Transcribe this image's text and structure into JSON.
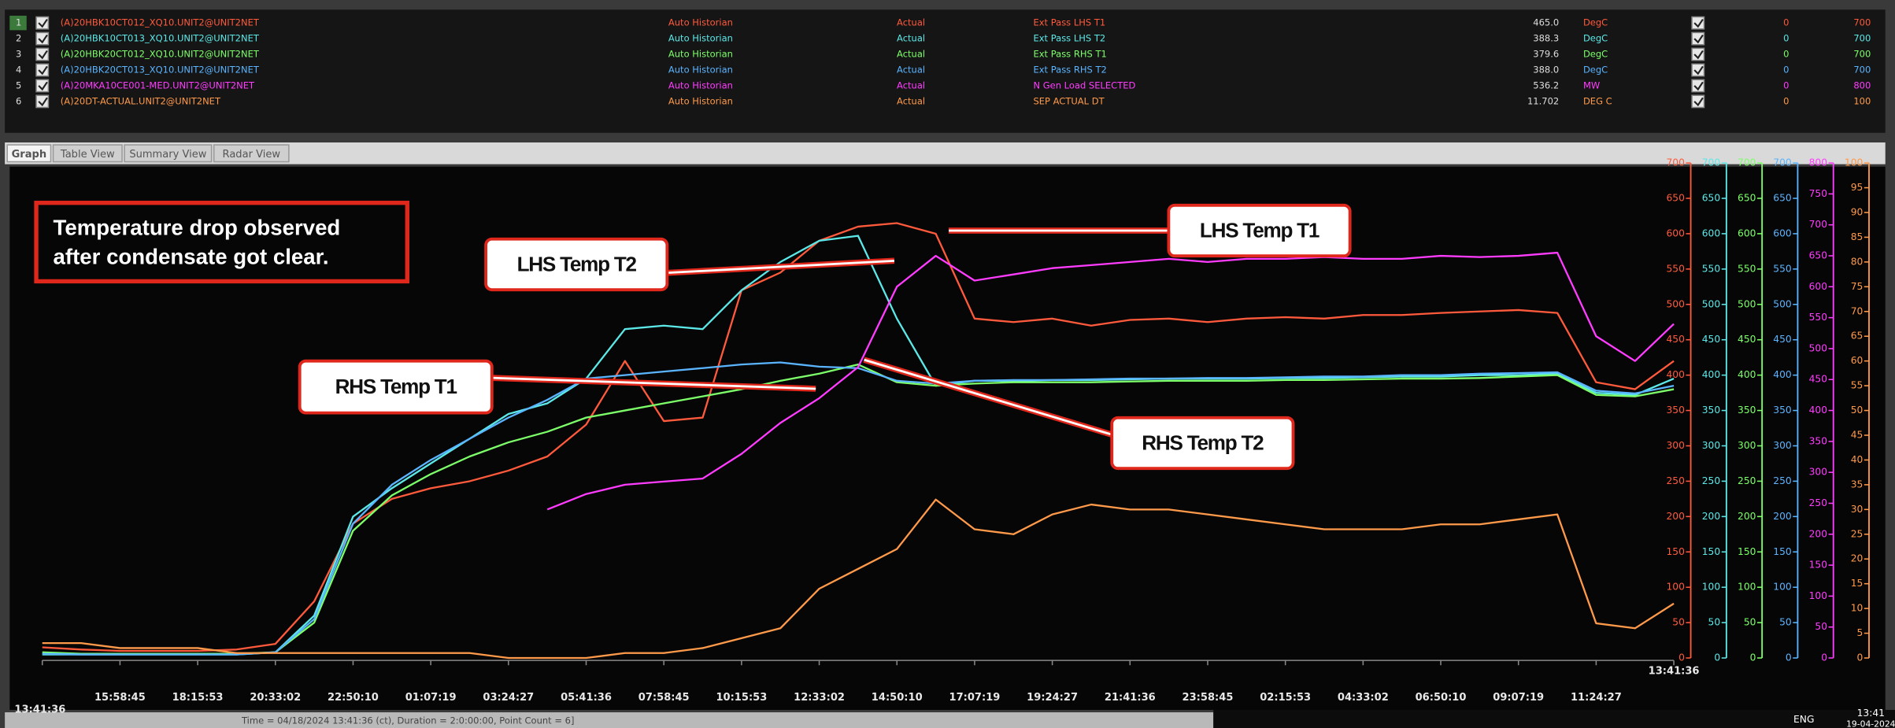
{
  "window": {
    "tabs": [
      "Graph",
      "Table View",
      "Summary View",
      "Radar View"
    ],
    "status_text": "Time = 04/18/2024 13:41:36 (ct), Duration = 2:0:00:00, Point Count = 6]",
    "taskbar": {
      "language": "ENG",
      "time": "13:41",
      "date": "19-04-2024"
    }
  },
  "chart_data": {
    "type": "line",
    "categories": [
      "13:41:36",
      null,
      "15:58:45",
      null,
      "18:15:53",
      null,
      "20:33:02",
      null,
      "22:50:10",
      null,
      "01:07:19",
      null,
      "03:24:27",
      null,
      "05:41:36",
      null,
      "07:58:45",
      null,
      "10:15:53",
      null,
      "12:33:02",
      null,
      "14:50:10",
      null,
      "17:07:19",
      null,
      "19:24:27",
      null,
      "21:41:36",
      null,
      "23:58:45",
      null,
      "02:15:53",
      null,
      "04:33:02",
      null,
      "06:50:10",
      null,
      "09:07:19",
      null,
      "11:24:27",
      null,
      "13:41:36"
    ],
    "axes": [
      {
        "color": "#ff5a3c",
        "ylim": [
          0,
          700
        ],
        "yticks": [
          0,
          50,
          100,
          150,
          200,
          250,
          300,
          350,
          400,
          450,
          500,
          550,
          600,
          650,
          700
        ]
      },
      {
        "color": "#5de8e8",
        "ylim": [
          0,
          700
        ],
        "yticks": [
          0,
          50,
          100,
          150,
          200,
          250,
          300,
          350,
          400,
          450,
          500,
          550,
          600,
          650,
          700
        ]
      },
      {
        "color": "#7dff6a",
        "ylim": [
          0,
          700
        ],
        "yticks": [
          0,
          50,
          100,
          150,
          200,
          250,
          300,
          350,
          400,
          450,
          500,
          550,
          600,
          650,
          700
        ]
      },
      {
        "color": "#5ab4ff",
        "ylim": [
          0,
          700
        ],
        "yticks": [
          0,
          50,
          100,
          150,
          200,
          250,
          300,
          350,
          400,
          450,
          500,
          550,
          600,
          650,
          700
        ]
      },
      {
        "color": "#ff3cff",
        "ylim": [
          0,
          800
        ],
        "yticks": [
          0,
          50,
          100,
          150,
          200,
          250,
          300,
          350,
          400,
          450,
          500,
          550,
          600,
          650,
          700,
          750,
          800
        ]
      },
      {
        "color": "#ff9a4a",
        "ylim": [
          0,
          100
        ],
        "yticks": [
          0,
          5,
          10,
          15,
          20,
          25,
          30,
          35,
          40,
          45,
          50,
          55,
          60,
          65,
          70,
          75,
          80,
          85,
          90,
          95,
          100
        ]
      }
    ],
    "series": [
      {
        "row": "1",
        "tag": "(A)20HBK10CT012_XQ10.UNIT2@UNIT2NET",
        "source": "Auto Historian",
        "mode": "Actual",
        "name": "Ext Pass LHS T1",
        "current": "465.0",
        "unit": "DegC",
        "min": "0",
        "max": "700",
        "color": "#ff5a3c",
        "axis": 0,
        "values": [
          15,
          12,
          10,
          10,
          10,
          12,
          20,
          80,
          190,
          225,
          240,
          250,
          265,
          285,
          330,
          420,
          335,
          340,
          520,
          545,
          590,
          610,
          615,
          600,
          480,
          475,
          480,
          470,
          478,
          480,
          475,
          480,
          482,
          480,
          485,
          485,
          488,
          490,
          492,
          488,
          390,
          380,
          420
        ]
      },
      {
        "row": "2",
        "tag": "(A)20HBK10CT013_XQ10.UNIT2@UNIT2NET",
        "source": "Auto Historian",
        "mode": "Actual",
        "name": "Ext Pass LHS T2",
        "current": "388.3",
        "unit": "DegC",
        "min": "0",
        "max": "700",
        "color": "#5de8e8",
        "axis": 1,
        "values": [
          5,
          5,
          5,
          5,
          5,
          5,
          8,
          60,
          200,
          240,
          275,
          310,
          345,
          360,
          395,
          465,
          470,
          465,
          520,
          560,
          590,
          597,
          480,
          385,
          392,
          392,
          393,
          393,
          394,
          395,
          395,
          395,
          396,
          396,
          397,
          398,
          398,
          400,
          400,
          402,
          375,
          372,
          395
        ]
      },
      {
        "row": "3",
        "tag": "(A)20HBK20CT012_XQ10.UNIT2@UNIT2NET",
        "source": "Auto Historian",
        "mode": "Actual",
        "name": "Ext Pass RHS T1",
        "current": "379.6",
        "unit": "DegC",
        "min": "0",
        "max": "700",
        "color": "#7dff6a",
        "axis": 2,
        "values": [
          8,
          6,
          6,
          6,
          6,
          6,
          8,
          50,
          180,
          230,
          260,
          285,
          305,
          320,
          340,
          350,
          360,
          370,
          380,
          392,
          402,
          415,
          390,
          385,
          388,
          390,
          390,
          390,
          391,
          392,
          392,
          392,
          393,
          393,
          394,
          395,
          395,
          396,
          398,
          400,
          372,
          370,
          380
        ]
      },
      {
        "row": "4",
        "tag": "(A)20HBK20CT013_XQ10.UNIT2@UNIT2NET",
        "source": "Auto Historian",
        "mode": "Actual",
        "name": "Ext Pass RHS T2",
        "current": "388.0",
        "unit": "DegC",
        "min": "0",
        "max": "700",
        "color": "#5ab4ff",
        "axis": 3,
        "values": [
          6,
          5,
          5,
          5,
          5,
          5,
          8,
          55,
          190,
          245,
          280,
          310,
          340,
          365,
          395,
          400,
          405,
          410,
          415,
          418,
          412,
          410,
          392,
          388,
          392,
          393,
          393,
          394,
          395,
          395,
          396,
          396,
          397,
          398,
          398,
          400,
          400,
          402,
          403,
          404,
          378,
          374,
          385
        ]
      },
      {
        "row": "5",
        "tag": "(A)20MKA10CE001-MED.UNIT2@UNIT2NET",
        "source": "Auto Historian",
        "mode": "Actual",
        "name": "N Gen Load SELECTED",
        "current": "536.2",
        "unit": "MW",
        "min": "0",
        "max": "800",
        "color": "#ff3cff",
        "axis": 4,
        "values": [
          null,
          null,
          null,
          null,
          null,
          null,
          null,
          null,
          null,
          null,
          null,
          null,
          null,
          240,
          265,
          280,
          285,
          290,
          330,
          380,
          420,
          470,
          600,
          650,
          610,
          620,
          630,
          635,
          640,
          645,
          640,
          645,
          645,
          648,
          645,
          645,
          650,
          648,
          650,
          655,
          520,
          480,
          540
        ]
      },
      {
        "row": "6",
        "tag": "(A)20DT-ACTUAL.UNIT2@UNIT2NET",
        "source": "Auto Historian",
        "mode": "Actual",
        "name": "SEP ACTUAL DT",
        "current": "11.702",
        "unit": "DEG C",
        "min": "0",
        "max": "100",
        "color": "#ff9a4a",
        "axis": 5,
        "values": [
          3,
          3,
          2,
          2,
          2,
          1,
          1,
          1,
          1,
          1,
          1,
          1,
          0,
          0,
          0,
          1,
          1,
          2,
          4,
          6,
          14,
          18,
          22,
          32,
          26,
          25,
          29,
          31,
          30,
          30,
          29,
          28,
          27,
          26,
          26,
          26,
          27,
          27,
          28,
          29,
          7,
          6,
          11
        ]
      }
    ],
    "note": [
      "Temperature drop observed",
      "after condensate got clear."
    ],
    "callouts": [
      "LHS Temp T1",
      "LHS Temp T2",
      "RHS Temp T1",
      "RHS Temp T2"
    ]
  }
}
